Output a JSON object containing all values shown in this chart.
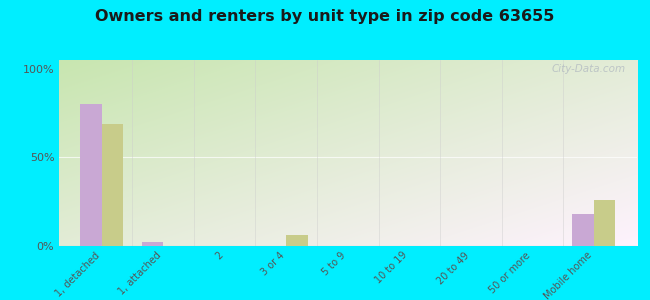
{
  "title": "Owners and renters by unit type in zip code 63655",
  "categories": [
    "1, detached",
    "1, attached",
    "2",
    "3 or 4",
    "5 to 9",
    "10 to 19",
    "20 to 49",
    "50 or more",
    "Mobile home"
  ],
  "owner_values": [
    80,
    2,
    0,
    0,
    0,
    0,
    0,
    0,
    18
  ],
  "renter_values": [
    69,
    0,
    0,
    6,
    0,
    0,
    0,
    0,
    26
  ],
  "owner_color": "#c9a8d4",
  "renter_color": "#c8cc8a",
  "background_outer": "#00eeff",
  "ylabel_ticks": [
    "0%",
    "50%",
    "100%"
  ],
  "ytick_vals": [
    0,
    50,
    100
  ],
  "bar_width": 0.35,
  "watermark": "City-Data.com",
  "grad_color_topleft": "#c8e6b0",
  "grad_color_bottomright": "#f5fbf0"
}
